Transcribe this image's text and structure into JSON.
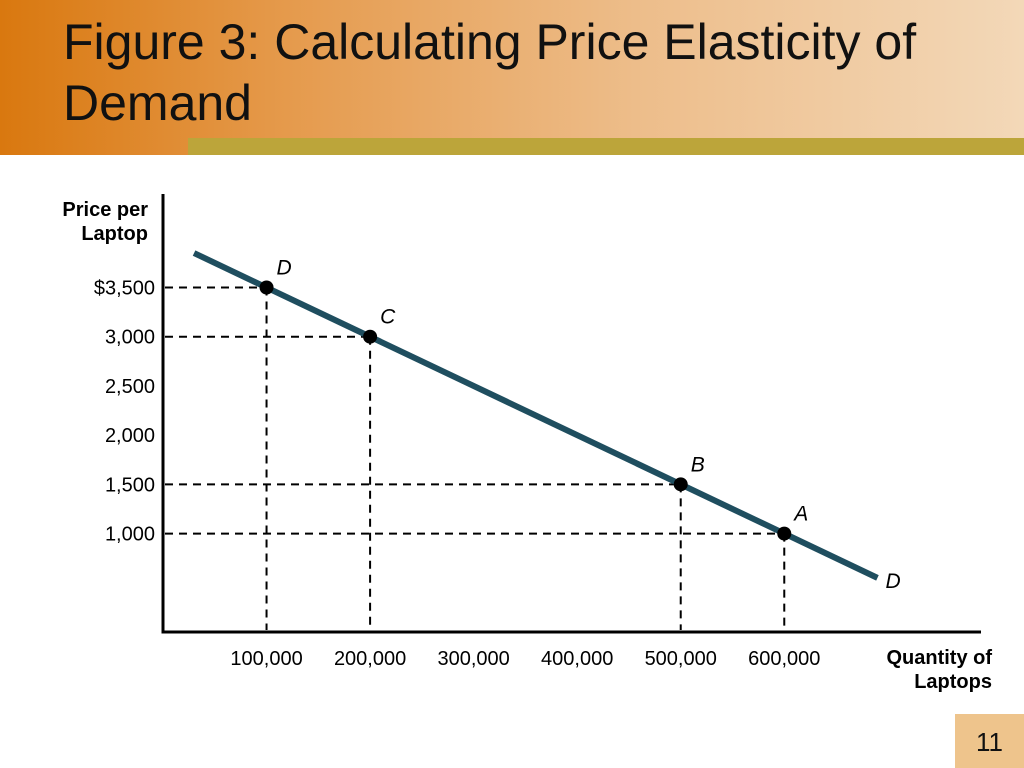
{
  "slide": {
    "title": "Figure 3:  Calculating Price Elasticity of Demand",
    "page_number": "11"
  },
  "colors": {
    "demand_line": "#1f4e5f",
    "title_band_start": "#d9780f",
    "title_band_end": "#f3d8b8",
    "stripe": "#bca53a",
    "page_box": "#eec48c"
  },
  "chart_data": {
    "type": "line",
    "ylabel": "Price per Laptop",
    "xlabel": "Quantity of Laptops",
    "x_ticks": [
      {
        "value": 100000,
        "label": "100,000"
      },
      {
        "value": 200000,
        "label": "200,000"
      },
      {
        "value": 300000,
        "label": "300,000"
      },
      {
        "value": 400000,
        "label": "400,000"
      },
      {
        "value": 500000,
        "label": "500,000"
      },
      {
        "value": 600000,
        "label": "600,000"
      }
    ],
    "y_ticks": [
      {
        "value": 3500,
        "label": "$3,500"
      },
      {
        "value": 3000,
        "label": "3,000"
      },
      {
        "value": 2500,
        "label": "2,500"
      },
      {
        "value": 2000,
        "label": "2,000"
      },
      {
        "value": 1500,
        "label": "1,500"
      },
      {
        "value": 1000,
        "label": "1,000"
      }
    ],
    "xlim": [
      0,
      790000
    ],
    "ylim": [
      0,
      4450
    ],
    "grid": false,
    "series": [
      {
        "line_label": "D",
        "points": [
          {
            "x": 30000,
            "y": 3850
          },
          {
            "x": 690000,
            "y": 550
          }
        ]
      }
    ],
    "points": [
      {
        "label": "D",
        "x": 100000,
        "y": 3500
      },
      {
        "label": "C",
        "x": 200000,
        "y": 3000
      },
      {
        "label": "B",
        "x": 500000,
        "y": 1500
      },
      {
        "label": "A",
        "x": 600000,
        "y": 1000
      }
    ]
  }
}
